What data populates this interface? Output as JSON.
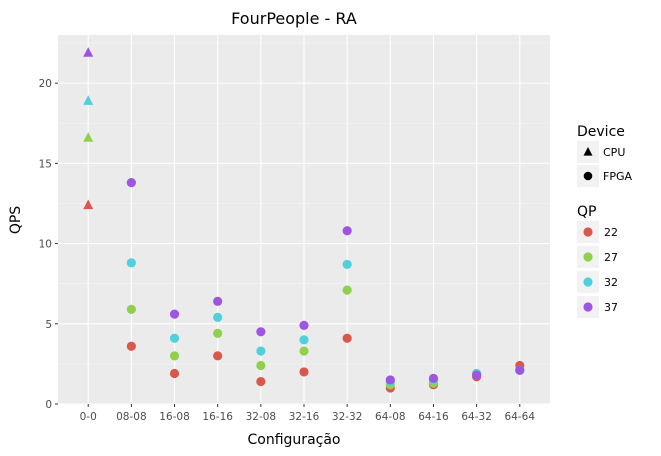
{
  "chart_data": {
    "type": "scatter",
    "title": "FourPeople - RA",
    "xlabel": "Configuração",
    "ylabel": "QPS",
    "categories": [
      "0-0",
      "08-08",
      "16-08",
      "16-16",
      "32-08",
      "32-16",
      "32-32",
      "64-08",
      "64-16",
      "64-32",
      "64-64"
    ],
    "ylim": [
      0,
      23
    ],
    "yticks": [
      0,
      5,
      10,
      15,
      20
    ],
    "grid": true,
    "legend_position": "right",
    "legend_shape": {
      "title": "Device",
      "items": [
        {
          "label": "CPU",
          "shape": "triangle"
        },
        {
          "label": "FPGA",
          "shape": "circle"
        }
      ]
    },
    "legend_color": {
      "title": "QP",
      "items": [
        {
          "label": "22",
          "color": "#d9584c"
        },
        {
          "label": "27",
          "color": "#8fd14f"
        },
        {
          "label": "32",
          "color": "#4fd0dd"
        },
        {
          "label": "37",
          "color": "#9e55e0"
        }
      ]
    },
    "series": [
      {
        "qp": "22",
        "color": "#d9584c",
        "cpu": [
          12.4
        ],
        "fpga": [
          3.6,
          1.9,
          3.0,
          1.4,
          2.0,
          4.1,
          1.0,
          1.2,
          1.7,
          2.4
        ]
      },
      {
        "qp": "27",
        "color": "#8fd14f",
        "cpu": [
          16.6
        ],
        "fpga": [
          5.9,
          3.0,
          4.4,
          2.4,
          3.3,
          7.1,
          1.2,
          1.3,
          1.9,
          2.1
        ]
      },
      {
        "qp": "32",
        "color": "#4fd0dd",
        "cpu": [
          18.9
        ],
        "fpga": [
          8.8,
          4.1,
          5.4,
          3.3,
          4.0,
          8.7,
          1.4,
          1.5,
          1.9,
          2.1
        ]
      },
      {
        "qp": "37",
        "color": "#9e55e0",
        "cpu": [
          21.9
        ],
        "fpga": [
          13.8,
          5.6,
          6.4,
          4.5,
          4.9,
          10.8,
          1.5,
          1.6,
          1.8,
          2.1
        ]
      }
    ]
  }
}
